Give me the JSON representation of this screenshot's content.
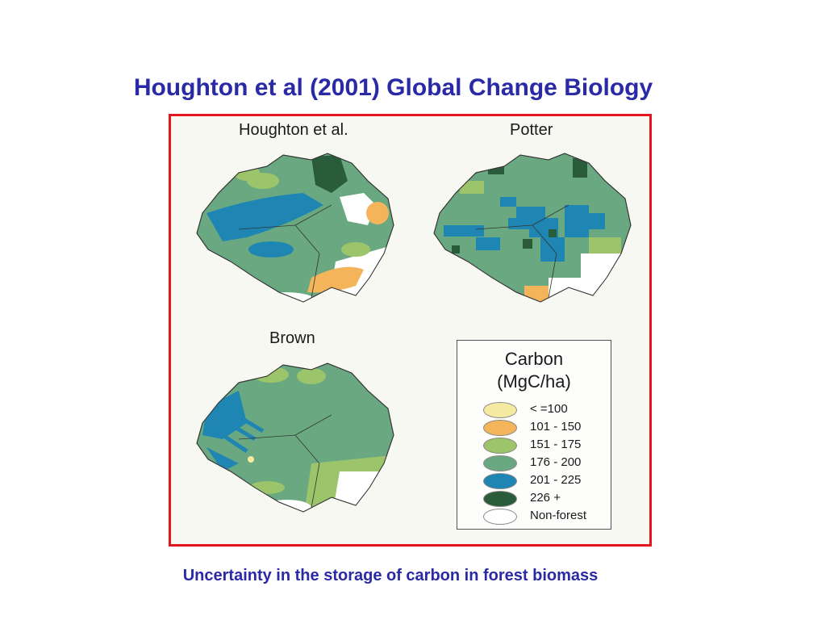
{
  "slide": {
    "title": "Houghton et al (2001) Global Change Biology",
    "caption": "Uncertainty in the storage of carbon in forest biomass"
  },
  "maps": [
    {
      "id": "houghton",
      "label": "Houghton et al."
    },
    {
      "id": "potter",
      "label": "Potter"
    },
    {
      "id": "brown",
      "label": "Brown"
    }
  ],
  "legend": {
    "title_line1": "Carbon",
    "title_line2": "(MgC/ha)",
    "items": [
      {
        "label": "< =100",
        "color": "#f5eba0"
      },
      {
        "label": "101 - 150",
        "color": "#f3b45a"
      },
      {
        "label": "151 - 175",
        "color": "#9cc46a"
      },
      {
        "label": "176 - 200",
        "color": "#6aa882"
      },
      {
        "label": "201 - 225",
        "color": "#1f86b4"
      },
      {
        "label": "226 +",
        "color": "#2a5c3c"
      },
      {
        "label": "Non-forest",
        "color": "#ffffff"
      }
    ]
  },
  "colors": {
    "title_text": "#2a2aa6",
    "frame_border": "#e4151c",
    "forest": "#6aa882",
    "high_carbon": "#1f86b4",
    "very_high_carbon": "#2a5c3c",
    "light_green": "#9cc46a",
    "orange": "#f3b45a"
  }
}
